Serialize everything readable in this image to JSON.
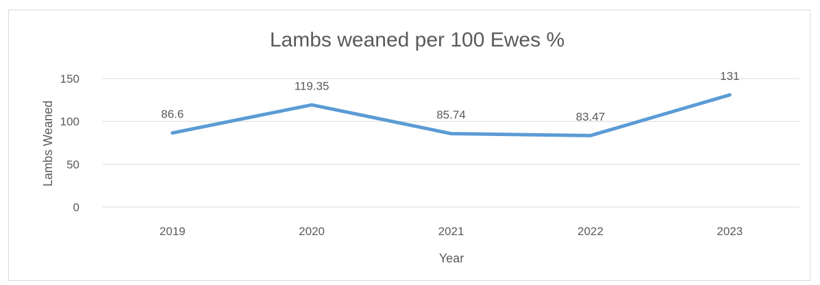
{
  "chart_data": {
    "type": "line",
    "title": "Lambs weaned per 100 Ewes %",
    "xlabel": "Year",
    "ylabel": "Lambs Weaned",
    "categories": [
      "2019",
      "2020",
      "2021",
      "2022",
      "2023"
    ],
    "series": [
      {
        "values": [
          86.6,
          119.35,
          85.74,
          83.47,
          131
        ],
        "labels": [
          "86.6",
          "119.35",
          "85.74",
          "83.47",
          "131"
        ],
        "color": "#5b9bd5"
      }
    ],
    "ylim": [
      0,
      150
    ],
    "yticks": [
      0,
      50,
      100,
      150
    ],
    "grid": true,
    "legend": "none"
  }
}
